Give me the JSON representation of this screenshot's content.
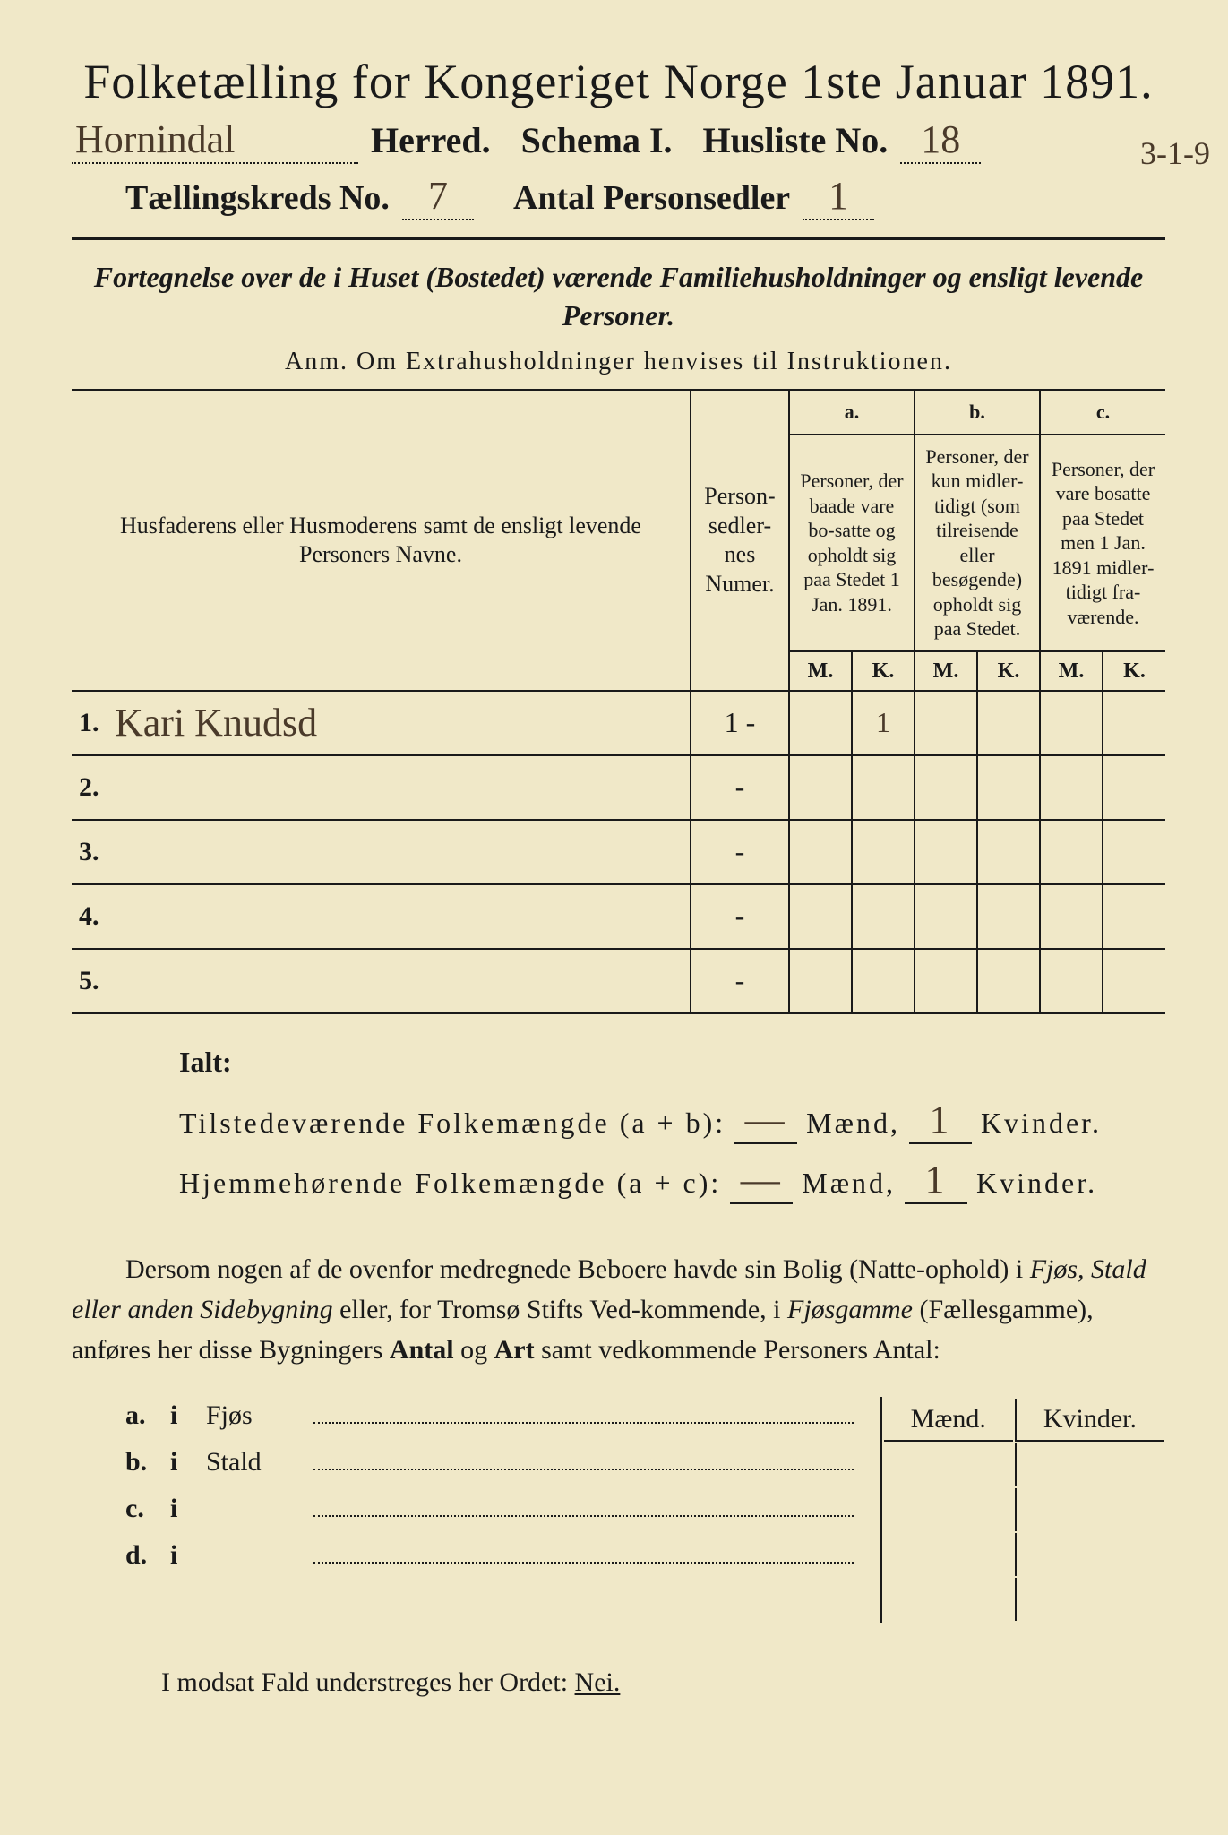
{
  "colors": {
    "paper": "#f0e8c8",
    "ink": "#1a1a1a",
    "handwriting": "#4a3a2a",
    "frame": "#000000"
  },
  "title": "Folketælling for Kongeriget Norge 1ste Januar 1891.",
  "herred_handwritten": "Hornindal",
  "herred_label": "Herred.",
  "schema_label": "Schema I.",
  "husliste_label": "Husliste No.",
  "husliste_no": "18",
  "margin_note": "3-1-9",
  "kreds_label": "Tællingskreds No.",
  "kreds_no": "7",
  "personsedler_label": "Antal Personsedler",
  "personsedler_no": "1",
  "subtitle": "Fortegnelse over de i Huset (Bostedet) værende Familiehusholdninger og ensligt levende Personer.",
  "anm": "Anm.  Om Extrahusholdninger henvises til Instruktionen.",
  "table": {
    "col_name": "Husfaderens eller Husmoderens samt de ensligt levende Personers Navne.",
    "col_num": "Person-sedler-nes Numer.",
    "col_a_head": "a.",
    "col_a": "Personer, der baade vare bo-satte og opholdt sig paa Stedet 1 Jan. 1891.",
    "col_b_head": "b.",
    "col_b": "Personer, der kun midler-tidigt (som tilreisende eller besøgende) opholdt sig paa Stedet.",
    "col_c_head": "c.",
    "col_c": "Personer, der vare bosatte paa Stedet men 1 Jan. 1891 midler-tidigt fra-værende.",
    "M": "M.",
    "K": "K.",
    "rows": [
      {
        "n": "1.",
        "name": "Kari Knudsd",
        "num": "1 -",
        "a_m": "",
        "a_k": "1",
        "b_m": "",
        "b_k": "",
        "c_m": "",
        "c_k": ""
      },
      {
        "n": "2.",
        "name": "",
        "num": "-",
        "a_m": "",
        "a_k": "",
        "b_m": "",
        "b_k": "",
        "c_m": "",
        "c_k": ""
      },
      {
        "n": "3.",
        "name": "",
        "num": "-",
        "a_m": "",
        "a_k": "",
        "b_m": "",
        "b_k": "",
        "c_m": "",
        "c_k": ""
      },
      {
        "n": "4.",
        "name": "",
        "num": "-",
        "a_m": "",
        "a_k": "",
        "b_m": "",
        "b_k": "",
        "c_m": "",
        "c_k": ""
      },
      {
        "n": "5.",
        "name": "",
        "num": "-",
        "a_m": "",
        "a_k": "",
        "b_m": "",
        "b_k": "",
        "c_m": "",
        "c_k": ""
      }
    ]
  },
  "summary": {
    "ialt": "Ialt:",
    "row1_label": "Tilstedeværende Folkemængde (a + b):",
    "row2_label": "Hjemmehørende Folkemængde (a + c):",
    "maend": "Mænd,",
    "kvinder": "Kvinder.",
    "r1_m": "—",
    "r1_k": "1",
    "r2_m": "—",
    "r2_k": "1"
  },
  "paragraph": {
    "p1": "Dersom nogen af de ovenfor medregnede Beboere havde sin Bolig (Natte-ophold) i ",
    "p2_i": "Fjøs, Stald eller anden Sidebygning",
    "p3": " eller, for Tromsø Stifts Ved-kommende, i ",
    "p4_i": "Fjøsgamme",
    "p5": " (Fællesgamme), anføres her disse Bygningers ",
    "p6_b": "Antal",
    "p7": " og ",
    "p8_b": "Art",
    "p9": " samt vedkommende Personers Antal:"
  },
  "buildings": {
    "maend": "Mænd.",
    "kvinder": "Kvinder.",
    "rows": [
      {
        "lbl": "a.",
        "word": "i",
        "type": "Fjøs"
      },
      {
        "lbl": "b.",
        "word": "i",
        "type": "Stald"
      },
      {
        "lbl": "c.",
        "word": "i",
        "type": ""
      },
      {
        "lbl": "d.",
        "word": "i",
        "type": ""
      }
    ]
  },
  "footer": {
    "text": "I modsat Fald understreges her Ordet: ",
    "nei": "Nei."
  }
}
